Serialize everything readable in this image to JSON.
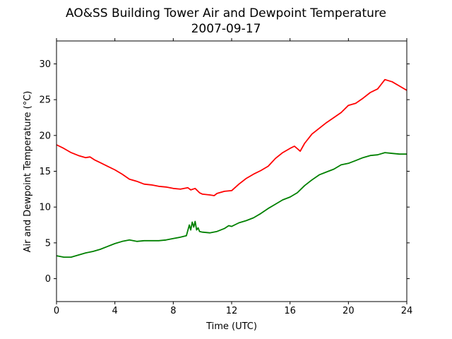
{
  "chart_data": {
    "type": "line",
    "title": "AO&SS Building Tower Air and Dewpoint Temperature",
    "subtitle": "2007-09-17",
    "xlabel": "Time (UTC)",
    "ylabel": "Air and Dewpoint Temperature (°C)",
    "xlim": [
      0,
      24
    ],
    "ylim": [
      -3.2,
      33.2
    ],
    "xticks": [
      0,
      4,
      8,
      12,
      16,
      20,
      24
    ],
    "xtick_labels": [
      "0",
      "4",
      "8",
      "12",
      "16",
      "20",
      "24"
    ],
    "yticks": [
      0,
      5,
      10,
      15,
      20,
      25,
      30
    ],
    "ytick_labels": [
      "0",
      "5",
      "10",
      "15",
      "20",
      "25",
      "30"
    ],
    "grid": false,
    "legend": "none",
    "series": [
      {
        "color": "#ff0000",
        "x": [
          0,
          0.5,
          1,
          1.5,
          2,
          2.3,
          2.6,
          3,
          3.5,
          4,
          4.5,
          5,
          5.5,
          6,
          6.5,
          7,
          7.5,
          8,
          8.5,
          9,
          9.2,
          9.5,
          9.8,
          10,
          10.5,
          10.8,
          11,
          11.5,
          12,
          12.5,
          13,
          13.5,
          14,
          14.5,
          15,
          15.5,
          16,
          16.3,
          16.7,
          17,
          17.5,
          18,
          18.5,
          19,
          19.5,
          20,
          20.5,
          21,
          21.5,
          22,
          22.5,
          23,
          23.5,
          24
        ],
        "y": [
          18.7,
          18.2,
          17.6,
          17.2,
          16.9,
          17.0,
          16.6,
          16.2,
          15.7,
          15.2,
          14.6,
          13.9,
          13.6,
          13.2,
          13.1,
          12.9,
          12.8,
          12.6,
          12.5,
          12.7,
          12.4,
          12.6,
          12.0,
          11.8,
          11.7,
          11.6,
          11.9,
          12.2,
          12.3,
          13.2,
          14.0,
          14.6,
          15.1,
          15.7,
          16.8,
          17.6,
          18.2,
          18.5,
          17.8,
          18.9,
          20.2,
          21.0,
          21.8,
          22.5,
          23.2,
          24.2,
          24.5,
          25.2,
          26.0,
          26.5,
          27.8,
          27.5,
          26.9,
          26.3
        ]
      },
      {
        "color": "#008000",
        "x": [
          0,
          0.5,
          1,
          1.5,
          2,
          2.5,
          3,
          3.5,
          4,
          4.5,
          5,
          5.5,
          6,
          6.5,
          7,
          7.5,
          8,
          8.5,
          8.9,
          9.1,
          9.2,
          9.3,
          9.4,
          9.5,
          9.6,
          9.7,
          9.8,
          10,
          10.5,
          11,
          11.5,
          11.8,
          12,
          12.5,
          13,
          13.5,
          14,
          14.5,
          15,
          15.5,
          16,
          16.5,
          17,
          17.5,
          18,
          18.5,
          19,
          19.5,
          20,
          20.5,
          21,
          21.5,
          22,
          22.5,
          23,
          23.5,
          24
        ],
        "y": [
          3.2,
          3.0,
          3.0,
          3.3,
          3.6,
          3.8,
          4.1,
          4.5,
          4.9,
          5.2,
          5.4,
          5.2,
          5.3,
          5.3,
          5.3,
          5.4,
          5.6,
          5.8,
          6.0,
          7.5,
          6.8,
          7.9,
          7.2,
          8.0,
          6.8,
          7.1,
          6.6,
          6.5,
          6.4,
          6.6,
          7.0,
          7.4,
          7.3,
          7.8,
          8.1,
          8.5,
          9.1,
          9.8,
          10.4,
          11.0,
          11.4,
          12.0,
          13.0,
          13.8,
          14.5,
          14.9,
          15.3,
          15.9,
          16.1,
          16.5,
          16.9,
          17.2,
          17.3,
          17.6,
          17.5,
          17.4,
          17.4
        ]
      }
    ]
  }
}
